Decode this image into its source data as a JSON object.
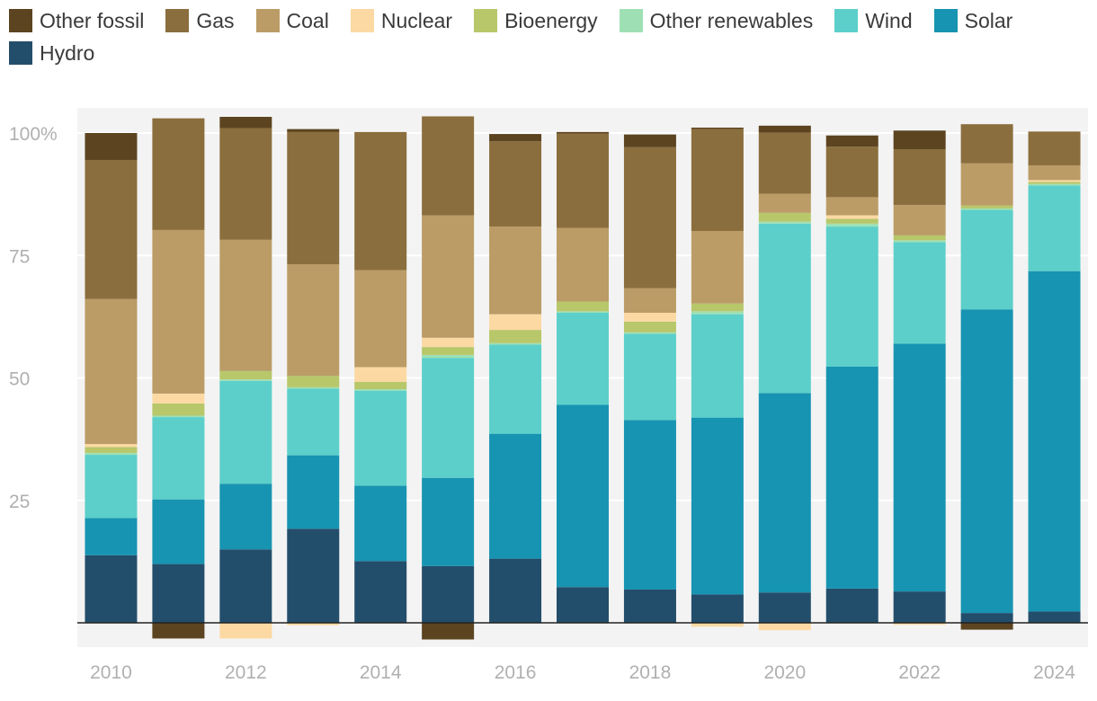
{
  "chart_data": {
    "type": "bar",
    "stacked": true,
    "categories": [
      "2010",
      "2011",
      "2012",
      "2013",
      "2014",
      "2015",
      "2016",
      "2017",
      "2018",
      "2019",
      "2020",
      "2021",
      "2022",
      "2023",
      "2024"
    ],
    "x_tick_labels": [
      "2010",
      "2012",
      "2014",
      "2016",
      "2018",
      "2020",
      "2022",
      "2024"
    ],
    "y_ticks": [
      25,
      50,
      75,
      100
    ],
    "y_tick_labels": [
      "25",
      "50",
      "75",
      "100%"
    ],
    "ylim": [
      -5,
      105
    ],
    "grid": true,
    "legend_position": "top",
    "title": "",
    "xlabel": "",
    "ylabel": "",
    "series": [
      {
        "name": "Hydro",
        "color": "#234e6b",
        "values": [
          13.8,
          12.0,
          15.0,
          19.2,
          12.6,
          11.6,
          13.1,
          7.3,
          6.8,
          5.8,
          6.2,
          7.0,
          6.4,
          2.0,
          2.3
        ]
      },
      {
        "name": "Solar",
        "color": "#1794b1",
        "values": [
          7.6,
          13.2,
          13.4,
          15.0,
          15.4,
          18.0,
          25.5,
          37.2,
          34.6,
          36.1,
          40.7,
          45.3,
          50.6,
          62.0,
          69.5
        ]
      },
      {
        "name": "Wind",
        "color": "#5ccfca",
        "values": [
          12.9,
          16.8,
          21.0,
          13.6,
          19.4,
          24.5,
          18.2,
          18.8,
          17.6,
          21.1,
          34.6,
          28.6,
          20.7,
          20.3,
          17.5
        ]
      },
      {
        "name": "Other renewables",
        "color": "#9ee0b4",
        "values": [
          0.4,
          0.3,
          0.3,
          0.3,
          0.3,
          0.6,
          0.3,
          0.3,
          0.3,
          0.6,
          0.4,
          0.6,
          0.4,
          0.3,
          0.3
        ]
      },
      {
        "name": "Bioenergy",
        "color": "#b7c76a",
        "values": [
          1.2,
          2.5,
          1.7,
          2.3,
          1.5,
          1.6,
          2.7,
          2.0,
          2.2,
          1.6,
          1.8,
          1.0,
          1.0,
          0.6,
          0.4
        ]
      },
      {
        "name": "Nuclear",
        "color": "#fcd9a3",
        "values": [
          0.6,
          2.0,
          -3.2,
          -0.5,
          3.0,
          1.9,
          3.2,
          0.0,
          1.8,
          -0.8,
          -1.5,
          0.7,
          -0.4,
          0.0,
          0.4
        ]
      },
      {
        "name": "Coal",
        "color": "#bb9c66",
        "values": [
          29.6,
          33.4,
          26.8,
          22.8,
          19.8,
          25.0,
          17.9,
          15.0,
          5.0,
          14.8,
          3.9,
          3.7,
          6.2,
          8.6,
          3.0
        ]
      },
      {
        "name": "Gas",
        "color": "#8b6e3d",
        "values": [
          28.4,
          22.8,
          22.8,
          27.0,
          28.2,
          20.2,
          17.4,
          19.3,
          28.8,
          20.8,
          12.5,
          10.3,
          11.4,
          8.0,
          6.9
        ]
      },
      {
        "name": "Other fossil",
        "color": "#5c4420",
        "values": [
          5.5,
          -3.2,
          2.3,
          0.6,
          0.0,
          -3.4,
          1.5,
          0.3,
          2.6,
          0.3,
          1.4,
          2.3,
          3.8,
          -1.4,
          0.0
        ]
      }
    ]
  }
}
